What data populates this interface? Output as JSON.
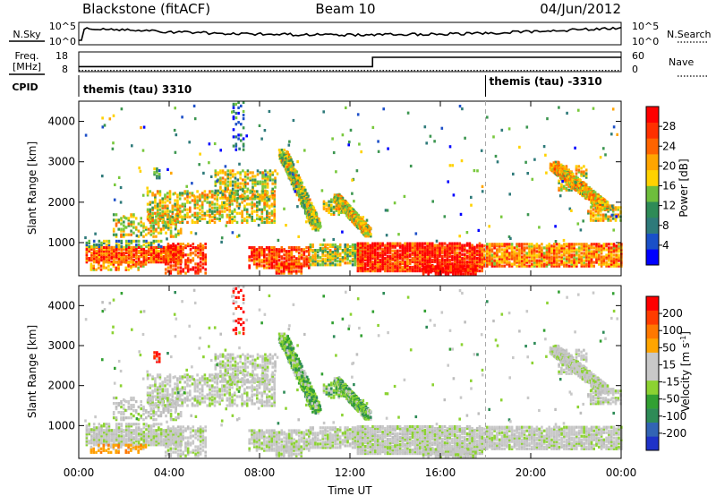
{
  "header": {
    "station": "Blackstone (fitACF)",
    "beam": "Beam 10",
    "date": "04/Jun/2012"
  },
  "nsky_panel": {
    "left_label": "N.Sky",
    "right_label": "N.Search",
    "left_ticks": [
      "10^5",
      "10^0"
    ],
    "right_ticks": [
      "10^5",
      "10^0"
    ]
  },
  "freq_panel": {
    "left_label_line1": "Freq.",
    "left_label_line2": "[MHz]",
    "left_ticks": [
      "18",
      "8"
    ],
    "right_label": "Nave",
    "right_ticks": [
      "60",
      "0"
    ],
    "freq_step_hour": 13.0,
    "freq_before_mhz": 10.8,
    "freq_after_mhz": 16.0,
    "nave_value": 4
  },
  "cpid_panel": {
    "label": "CPID",
    "segments": [
      {
        "start_hour": 0,
        "label": "themis (tau) 3310"
      },
      {
        "start_hour": 18,
        "label": "themis (tau) -3310"
      }
    ]
  },
  "time_axis": {
    "xlabel": "Time UT",
    "tick_labels": [
      "00:00",
      "04:00",
      "08:00",
      "12:00",
      "16:00",
      "20:00",
      "00:00"
    ],
    "xlim_hours": [
      0,
      24
    ]
  },
  "chart_data": [
    {
      "type": "heatmap",
      "name": "power",
      "ylabel": "Slant Range [km]",
      "ylim": [
        180,
        4500
      ],
      "yticks": [
        1000,
        2000,
        3000,
        4000
      ],
      "xlim": [
        0,
        24
      ],
      "colorbar": {
        "label": "Power [dB]",
        "ticks": [
          "4",
          "8",
          "12",
          "16",
          "20",
          "24",
          "28"
        ],
        "colors": [
          "#0000ff",
          "#1a50c8",
          "#2e7a7a",
          "#2e8b57",
          "#6ebe3c",
          "#ffd200",
          "#ffa500",
          "#ff6400",
          "#ff3000",
          "#ff0000"
        ]
      }
    },
    {
      "type": "heatmap",
      "name": "velocity",
      "ylabel": "Slant Range [km]",
      "ylim": [
        180,
        4500
      ],
      "yticks": [
        1000,
        2000,
        3000,
        4000
      ],
      "xlim": [
        0,
        24
      ],
      "colorbar": {
        "label": "Velocity [m s",
        "label_sup": "-1",
        "label_end": "]",
        "ticks": [
          "200",
          "100",
          "50",
          "15",
          "-15",
          "-50",
          "-100",
          "-200"
        ],
        "colors": [
          "#1e32c8",
          "#3264b4",
          "#2e8b57",
          "#32a032",
          "#8cd232",
          "#c8c8c8",
          "#c8c8c8",
          "#ffa500",
          "#ff7800",
          "#ff3c00",
          "#ff0000"
        ]
      }
    }
  ],
  "scatter_regions": [
    {
      "h0": 0.3,
      "h1": 4.5,
      "r0": 520,
      "r1": 900,
      "d": 0.9,
      "pw": 0.8,
      "vel": "grey"
    },
    {
      "h0": 0.3,
      "h1": 3.6,
      "r0": 900,
      "r1": 1050,
      "d": 0.6,
      "pw": 0.35,
      "vel": "grey"
    },
    {
      "h0": 0.5,
      "h1": 3.0,
      "r0": 330,
      "r1": 520,
      "d": 0.5,
      "pw": 0.7,
      "vel": "orange"
    },
    {
      "h0": 1.5,
      "h1": 4.5,
      "r0": 1150,
      "r1": 1700,
      "d": 0.45,
      "pw": 0.55,
      "vel": "grey"
    },
    {
      "h0": 3.0,
      "h1": 8.7,
      "r0": 1500,
      "r1": 2300,
      "d": 0.55,
      "pw": 0.55,
      "vel": "grey"
    },
    {
      "h0": 6.0,
      "h1": 8.7,
      "r0": 2100,
      "r1": 2800,
      "d": 0.5,
      "pw": 0.5,
      "vel": "grey"
    },
    {
      "h0": 3.8,
      "h1": 5.6,
      "r0": 200,
      "r1": 1000,
      "d": 0.55,
      "pw": 0.85,
      "vel": "grey"
    },
    {
      "h0": 7.5,
      "h1": 10.2,
      "r0": 380,
      "r1": 900,
      "d": 0.8,
      "pw": 0.85,
      "vel": "grey"
    },
    {
      "h0": 8.7,
      "h1": 9.9,
      "r0": 200,
      "r1": 500,
      "d": 0.7,
      "pw": 0.85,
      "vel": "grey"
    },
    {
      "h0": 10.2,
      "h1": 12.6,
      "r0": 450,
      "r1": 950,
      "d": 0.75,
      "pw": 0.5,
      "vel": "grey"
    },
    {
      "h0": 10.8,
      "h1": 11.6,
      "r0": 1700,
      "r1": 2100,
      "d": 0.6,
      "pw": 0.55,
      "vel": "green"
    },
    {
      "h0": 12.3,
      "h1": 17.8,
      "r0": 300,
      "r1": 1000,
      "d": 0.9,
      "pw": 0.9,
      "vel": "grey"
    },
    {
      "h0": 15.2,
      "h1": 17.6,
      "r0": 180,
      "r1": 420,
      "d": 0.85,
      "pw": 0.97,
      "vel": "grey"
    },
    {
      "h0": 17.8,
      "h1": 24.0,
      "r0": 420,
      "r1": 1000,
      "d": 0.85,
      "pw": 0.7,
      "vel": "grey"
    },
    {
      "h0": 21.2,
      "h1": 22.5,
      "r0": 2300,
      "r1": 2900,
      "d": 0.5,
      "pw": 0.55,
      "vel": "grey"
    },
    {
      "h0": 22.5,
      "h1": 24.0,
      "r0": 1550,
      "r1": 1950,
      "d": 0.6,
      "pw": 0.55,
      "vel": "grey"
    },
    {
      "h0": 6.8,
      "h1": 7.3,
      "r0": 3300,
      "r1": 4500,
      "d": 0.25,
      "pw": 0.25,
      "vel": "red"
    },
    {
      "h0": 3.3,
      "h1": 3.6,
      "r0": 2600,
      "r1": 2850,
      "d": 0.6,
      "pw": 0.4,
      "vel": "red"
    }
  ],
  "scatter_streaks": [
    {
      "h0": 9.0,
      "h1": 10.5,
      "r0": 3200,
      "r1": 1400,
      "w": 0.35,
      "d": 0.5,
      "pw": 0.5,
      "vel": "green"
    },
    {
      "h0": 11.4,
      "h1": 12.8,
      "r0": 2100,
      "r1": 1250,
      "w": 0.3,
      "d": 0.6,
      "pw": 0.55,
      "vel": "green"
    },
    {
      "h0": 21.0,
      "h1": 23.2,
      "r0": 2900,
      "r1": 1900,
      "w": 0.35,
      "d": 0.6,
      "pw": 0.6,
      "vel": "grey"
    }
  ]
}
